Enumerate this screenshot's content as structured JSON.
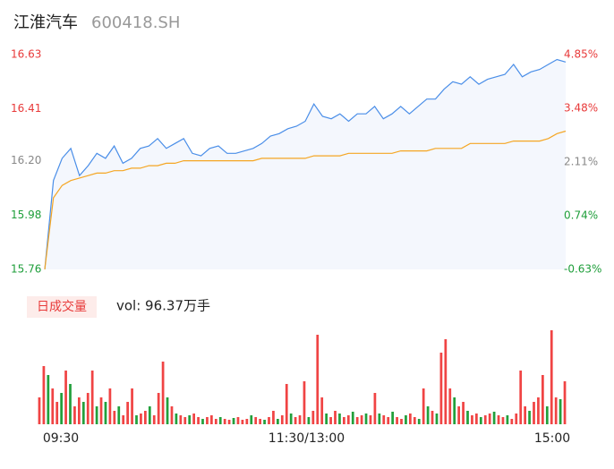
{
  "chart_data": [
    {
      "type": "line",
      "title": "江淮汽车",
      "subtitle": "600418.SH",
      "x": [
        0,
        4,
        8,
        12,
        16,
        20,
        24,
        28,
        32,
        36,
        40,
        44,
        48,
        52,
        56,
        60,
        64,
        68,
        72,
        76,
        80,
        84,
        88,
        92,
        96,
        100,
        104,
        108,
        112,
        116,
        120,
        124,
        128,
        132,
        136,
        140,
        144,
        148,
        152,
        156,
        160,
        164,
        168,
        172,
        176,
        180,
        184,
        188,
        192,
        196,
        200,
        204,
        208,
        212,
        216,
        220,
        224,
        228,
        232,
        236,
        240
      ],
      "xlim": [
        0,
        240
      ],
      "series": [
        {
          "color": "#4a8ee8",
          "area_color": "#f4f7fd",
          "values": [
            15.76,
            16.12,
            16.21,
            16.25,
            16.14,
            16.18,
            16.23,
            16.21,
            16.26,
            16.19,
            16.21,
            16.25,
            16.26,
            16.29,
            16.25,
            16.27,
            16.29,
            16.23,
            16.22,
            16.25,
            16.26,
            16.23,
            16.23,
            16.24,
            16.25,
            16.27,
            16.3,
            16.31,
            16.33,
            16.34,
            16.36,
            16.43,
            16.38,
            16.37,
            16.39,
            16.36,
            16.39,
            16.39,
            16.42,
            16.37,
            16.39,
            16.42,
            16.39,
            16.42,
            16.45,
            16.45,
            16.49,
            16.52,
            16.51,
            16.54,
            16.51,
            16.53,
            16.54,
            16.55,
            16.59,
            16.54,
            16.56,
            16.57,
            16.59,
            16.61,
            16.6
          ]
        },
        {
          "color": "#f5a623",
          "values": [
            15.76,
            16.05,
            16.1,
            16.12,
            16.13,
            16.14,
            16.15,
            16.15,
            16.16,
            16.16,
            16.17,
            16.17,
            16.18,
            16.18,
            16.19,
            16.19,
            16.2,
            16.2,
            16.2,
            16.2,
            16.2,
            16.2,
            16.2,
            16.2,
            16.2,
            16.21,
            16.21,
            16.21,
            16.21,
            16.21,
            16.21,
            16.22,
            16.22,
            16.22,
            16.22,
            16.23,
            16.23,
            16.23,
            16.23,
            16.23,
            16.23,
            16.24,
            16.24,
            16.24,
            16.24,
            16.25,
            16.25,
            16.25,
            16.25,
            16.27,
            16.27,
            16.27,
            16.27,
            16.27,
            16.28,
            16.28,
            16.28,
            16.28,
            16.29,
            16.31,
            16.32
          ]
        }
      ],
      "ylim": [
        15.76,
        16.63
      ],
      "yticks": [
        15.76,
        15.98,
        {
          "value": 16.2,
          "label": "16.20"
        },
        16.41,
        16.63
      ],
      "ytick_colors": [
        "#1e9e3a",
        "#1e9e3a",
        "#888888",
        "#e83a3a",
        "#e83a3a"
      ],
      "y2lim": [
        -0.63,
        4.85
      ],
      "y2ticks": [
        {
          "value": -0.63,
          "label": "-0.63%"
        },
        {
          "value": 0.74,
          "label": "0.74%"
        },
        {
          "value": 2.11,
          "label": "2.11%"
        },
        {
          "value": 3.48,
          "label": "3.48%"
        },
        {
          "value": 4.85,
          "label": "4.85%"
        }
      ],
      "y2tick_colors": [
        "#1e9e3a",
        "#1e9e3a",
        "#888888",
        "#e83a3a",
        "#e83a3a"
      ]
    },
    {
      "type": "bar",
      "title": "日成交量",
      "vol_label": "vol: 96.37万手",
      "xlim": [
        0,
        240
      ],
      "xticks": [
        {
          "value": 0,
          "label": "09:30"
        },
        {
          "value": 120,
          "label": "11:30/13:00"
        },
        {
          "value": 240,
          "label": "15:00"
        }
      ],
      "ylim": [
        0,
        110
      ],
      "up_color": "#f04444",
      "down_color": "#22a03c",
      "values": [
        30,
        65,
        55,
        40,
        25,
        35,
        60,
        45,
        20,
        30,
        25,
        35,
        60,
        20,
        30,
        25,
        40,
        15,
        20,
        10,
        25,
        40,
        10,
        12,
        15,
        20,
        10,
        35,
        70,
        30,
        20,
        12,
        10,
        8,
        10,
        12,
        8,
        6,
        8,
        10,
        6,
        8,
        6,
        5,
        7,
        8,
        5,
        6,
        10,
        8,
        6,
        5,
        8,
        15,
        6,
        10,
        45,
        12,
        8,
        10,
        48,
        8,
        15,
        100,
        30,
        12,
        8,
        15,
        12,
        8,
        10,
        14,
        8,
        10,
        12,
        10,
        35,
        12,
        10,
        8,
        14,
        8,
        6,
        10,
        12,
        8,
        6,
        40,
        20,
        15,
        12,
        80,
        95,
        40,
        30,
        20,
        25,
        15,
        10,
        12,
        8,
        10,
        12,
        14,
        10,
        8,
        10,
        6,
        12,
        60,
        20,
        15,
        25,
        30,
        55,
        20,
        105,
        30,
        28,
        48
      ],
      "direction": [
        "up",
        "up",
        "down",
        "up",
        "up",
        "down",
        "up",
        "down",
        "up",
        "up",
        "down",
        "up",
        "up",
        "down",
        "up",
        "down",
        "up",
        "up",
        "down",
        "up",
        "up",
        "up",
        "down",
        "up",
        "up",
        "down",
        "up",
        "up",
        "up",
        "down",
        "up",
        "down",
        "up",
        "up",
        "down",
        "up",
        "up",
        "down",
        "up",
        "up",
        "up",
        "down",
        "up",
        "up",
        "down",
        "up",
        "up",
        "up",
        "down",
        "up",
        "up",
        "down",
        "up",
        "up",
        "down",
        "up",
        "up",
        "down",
        "up",
        "up",
        "up",
        "down",
        "up",
        "up",
        "up",
        "down",
        "up",
        "up",
        "down",
        "up",
        "up",
        "down",
        "up",
        "up",
        "down",
        "up",
        "up",
        "down",
        "up",
        "up",
        "down",
        "up",
        "up",
        "down",
        "up",
        "up",
        "down",
        "up",
        "down",
        "up",
        "down",
        "up",
        "up",
        "up",
        "down",
        "up",
        "up",
        "down",
        "up",
        "up",
        "down",
        "up",
        "up",
        "down",
        "up",
        "up",
        "down",
        "up",
        "up",
        "up",
        "up",
        "down",
        "up",
        "up",
        "up",
        "down",
        "up",
        "up",
        "down",
        "up"
      ]
    }
  ]
}
